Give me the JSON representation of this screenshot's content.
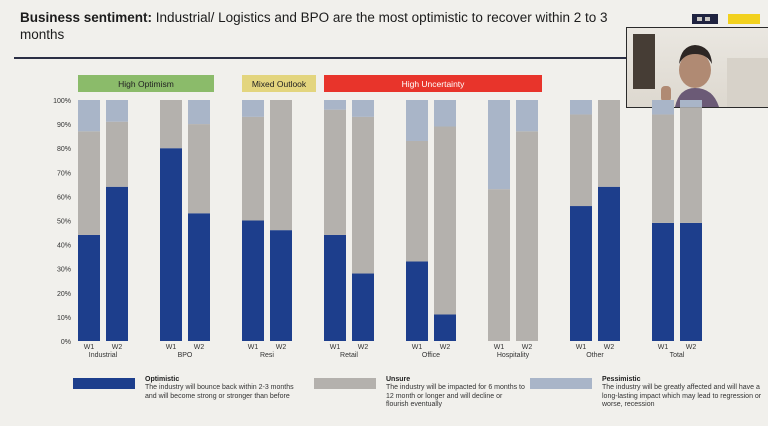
{
  "slide": {
    "title_bold": "Business sentiment:",
    "title_rest": " Industrial/ Logistics and BPO are the most optimistic to recover within 2 to 3 months"
  },
  "colors": {
    "optimistic": "#1d3e8c",
    "unsure": "#b4b1ad",
    "pessimistic": "#a9b5c8",
    "high_optimism": "#8bbb6a",
    "mixed_outlook": "#e3d57e",
    "high_uncertainty": "#e8342b",
    "logo_dark": "#1f2340",
    "logo_gray": "#c9c7c3",
    "logo_yellow": "#f2d11e"
  },
  "chart_data": {
    "type": "bar",
    "stacked": true,
    "ylim": [
      0,
      100
    ],
    "yticks": [
      "0%",
      "10%",
      "20%",
      "30%",
      "40%",
      "50%",
      "60%",
      "70%",
      "80%",
      "90%",
      "100%"
    ],
    "groups": [
      {
        "name": "Industrial",
        "bars": [
          {
            "label": "W1",
            "values": [
              44,
              43,
              13
            ]
          },
          {
            "label": "W2",
            "values": [
              64,
              27,
              9
            ]
          }
        ]
      },
      {
        "name": "BPO",
        "bars": [
          {
            "label": "W1",
            "values": [
              80,
              20,
              0
            ]
          },
          {
            "label": "W2",
            "values": [
              53,
              37,
              10
            ]
          }
        ]
      },
      {
        "name": "Resi",
        "bars": [
          {
            "label": "W1",
            "values": [
              50,
              43,
              7
            ]
          },
          {
            "label": "W2",
            "values": [
              46,
              54,
              0
            ]
          }
        ]
      },
      {
        "name": "Retail",
        "bars": [
          {
            "label": "W1",
            "values": [
              44,
              52,
              4
            ]
          },
          {
            "label": "W2",
            "values": [
              28,
              65,
              7
            ]
          }
        ]
      },
      {
        "name": "Office",
        "bars": [
          {
            "label": "W1",
            "values": [
              33,
              50,
              17
            ]
          },
          {
            "label": "W2",
            "values": [
              11,
              78,
              11
            ]
          }
        ]
      },
      {
        "name": "Hospitality",
        "bars": [
          {
            "label": "W1",
            "values": [
              0,
              63,
              37
            ]
          },
          {
            "label": "W2",
            "values": [
              0,
              87,
              13
            ]
          }
        ]
      },
      {
        "name": "Other",
        "bars": [
          {
            "label": "W1",
            "values": [
              56,
              38,
              6
            ]
          },
          {
            "label": "W2",
            "values": [
              64,
              36,
              0
            ]
          }
        ]
      },
      {
        "name": "Total",
        "bars": [
          {
            "label": "W1",
            "values": [
              49,
              45,
              6
            ]
          },
          {
            "label": "W2",
            "values": [
              49,
              48,
              3
            ]
          }
        ]
      }
    ],
    "series": [
      "Optimistic",
      "Unsure",
      "Pessimistic"
    ],
    "category_tags": [
      {
        "label": "High Optimism",
        "color_key": "high_optimism",
        "span": [
          "Industrial",
          "BPO"
        ]
      },
      {
        "label": "Mixed Outlook",
        "color_key": "mixed_outlook",
        "span": [
          "Resi",
          "Resi"
        ]
      },
      {
        "label": "High Uncertainty",
        "color_key": "high_uncertainty",
        "span": [
          "Retail",
          "Hospitality"
        ]
      }
    ]
  },
  "legend": [
    {
      "title": "Optimistic",
      "desc": "The industry will bounce back within 2-3 months and will become strong or stronger than before"
    },
    {
      "title": "Unsure",
      "desc": "The industry will be impacted for 6 months to 12 month or longer and will decline or flourish eventually"
    },
    {
      "title": "Pessimistic",
      "desc": "The industry will be greatly affected and will have a long-lasting impact which may lead to regression or worse, recession"
    }
  ]
}
